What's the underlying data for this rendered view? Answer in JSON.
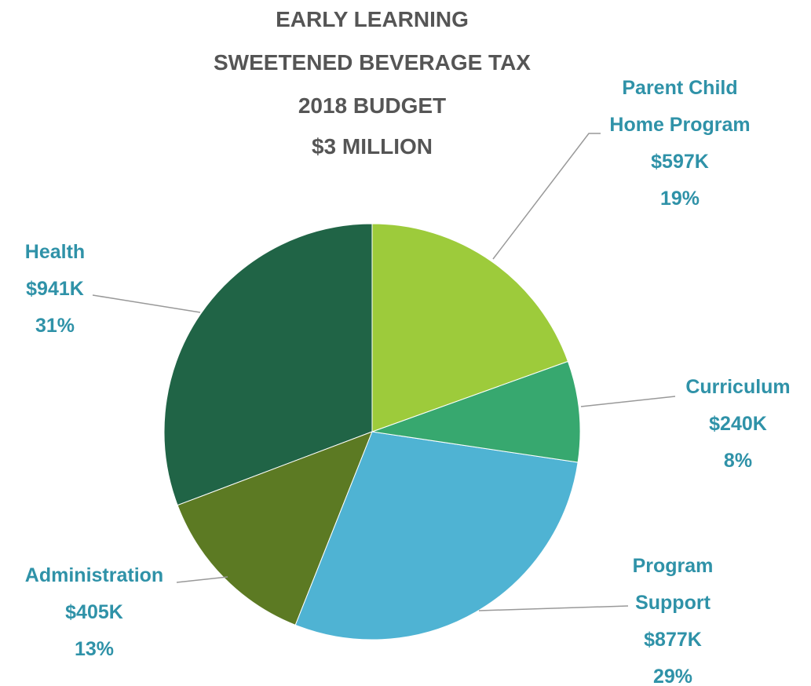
{
  "chart_data": {
    "type": "pie",
    "title": [
      "EARLY LEARNING",
      "SWEETENED BEVERAGE TAX",
      "2018 BUDGET",
      "$3 MILLION"
    ],
    "categories": [
      "Parent Child Home Program",
      "Curriculum",
      "Program Support",
      "Administration",
      "Health"
    ],
    "values": [
      597000,
      240000,
      877000,
      405000,
      941000
    ],
    "value_labels": [
      "$597K",
      "$240K",
      "$877K",
      "$405K",
      "$941K"
    ],
    "percents": [
      19,
      8,
      29,
      13,
      31
    ],
    "percent_labels": [
      "19%",
      "8%",
      "29%",
      "13%",
      "31%"
    ],
    "colors": [
      "#9dcb3b",
      "#37a86f",
      "#4fb3d3",
      "#5c7a23",
      "#206446"
    ]
  }
}
